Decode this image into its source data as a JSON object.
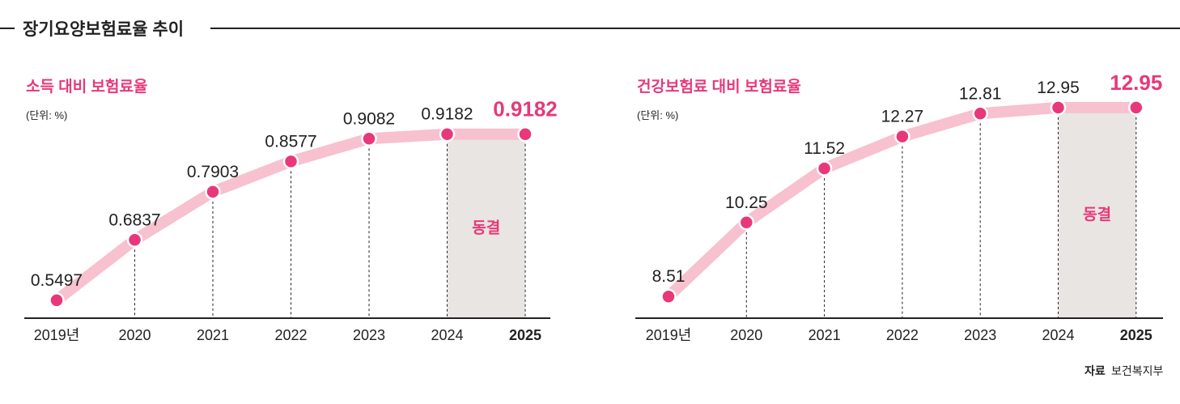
{
  "header": {
    "title": "장기요양보험료율 추이"
  },
  "source": {
    "label": "자료",
    "value": "보건복지부"
  },
  "colors": {
    "accent": "#e8387a",
    "line": "#f7c1cf",
    "frozen": "#e9e5e2",
    "text": "#222222"
  },
  "chart_data": [
    {
      "type": "line",
      "title": "소득 대비 보험료율",
      "unit": "(단위: %)",
      "categories": [
        "2019년",
        "2020",
        "2021",
        "2022",
        "2023",
        "2024",
        "2025"
      ],
      "values": [
        0.5497,
        0.6837,
        0.7903,
        0.8577,
        0.9082,
        0.9182,
        0.9182
      ],
      "labels": [
        "0.5497",
        "0.6837",
        "0.7903",
        "0.8577",
        "0.9082",
        "0.9182",
        "0.9182"
      ],
      "ylim": [
        0.51,
        0.95
      ],
      "annotation": "동결",
      "grid": false
    },
    {
      "type": "line",
      "title": "건강보험료 대비 보험료율",
      "unit": "(단위: %)",
      "categories": [
        "2019년",
        "2020",
        "2021",
        "2022",
        "2023",
        "2024",
        "2025"
      ],
      "values": [
        8.51,
        10.25,
        11.52,
        12.27,
        12.81,
        12.95,
        12.95
      ],
      "labels": [
        "8.51",
        "10.25",
        "11.52",
        "12.27",
        "12.81",
        "12.95",
        "12.95"
      ],
      "ylim": [
        8.0,
        13.5
      ],
      "annotation": "동결",
      "grid": false
    }
  ]
}
